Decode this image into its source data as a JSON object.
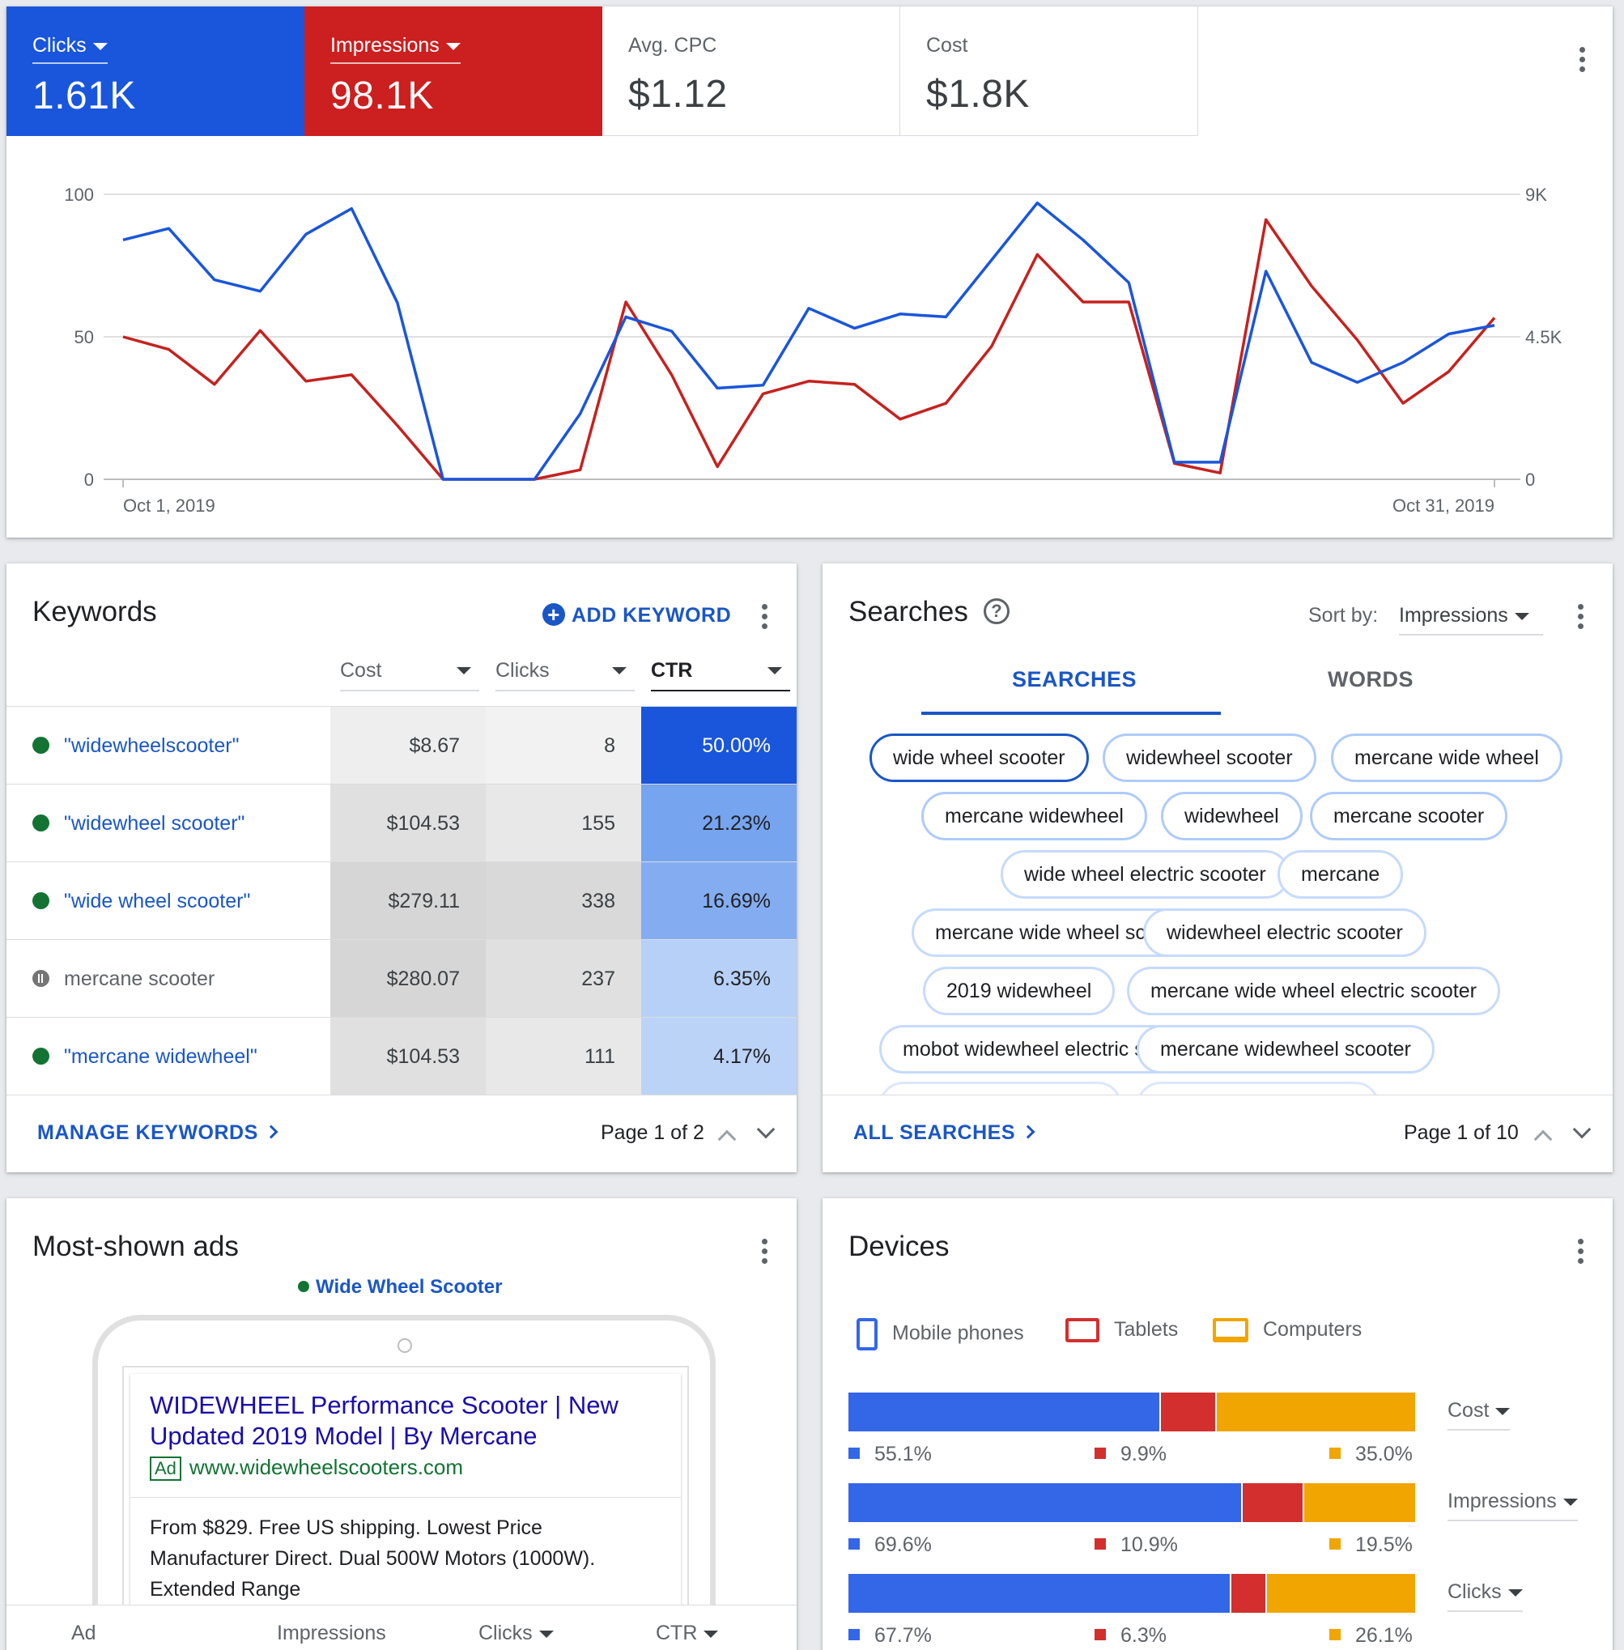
{
  "overview": {
    "metrics": [
      {
        "label": "Clicks",
        "value": "1.61K"
      },
      {
        "label": "Impressions",
        "value": "98.1K"
      },
      {
        "label": "Avg. CPC",
        "value": "$1.12"
      },
      {
        "label": "Cost",
        "value": "$1.8K"
      }
    ]
  },
  "chart_data": {
    "type": "line",
    "x_start_label": "Oct 1, 2019",
    "x_end_label": "Oct 31, 2019",
    "left_axis": {
      "ticks": [
        "100",
        "50",
        "0"
      ],
      "ylim": [
        0,
        100
      ]
    },
    "right_axis": {
      "ticks": [
        "9K",
        "4.5K",
        "0"
      ],
      "ylim": [
        0,
        9000
      ]
    },
    "series": [
      {
        "name": "Clicks",
        "color": "#1a56db",
        "axis": "left",
        "values": [
          84,
          88,
          70,
          66,
          86,
          95,
          62,
          0,
          0,
          0,
          23,
          57,
          52,
          32,
          33,
          60,
          53,
          58,
          57,
          77,
          97,
          84,
          69,
          6,
          6,
          73,
          41,
          34,
          41,
          51,
          54
        ]
      },
      {
        "name": "Impressions",
        "color": "#c5221f",
        "axis": "right",
        "values": [
          4500,
          4100,
          3000,
          4700,
          3100,
          3300,
          1700,
          0,
          0,
          0,
          300,
          5600,
          3300,
          400,
          2700,
          3100,
          3000,
          1900,
          2400,
          4200,
          7100,
          5600,
          5600,
          500,
          200,
          8200,
          6100,
          4400,
          2400,
          3400,
          5100
        ]
      }
    ]
  },
  "keywords": {
    "title": "Keywords",
    "add_label": "ADD KEYWORD",
    "headers": {
      "cost": "Cost",
      "clicks": "Clicks",
      "ctr": "CTR"
    },
    "rows": [
      {
        "keyword": "\"widewheelscooter\"",
        "cost": "$8.67",
        "clicks": "8",
        "ctr": "50.00%",
        "status": "enabled"
      },
      {
        "keyword": "\"widewheel scooter\"",
        "cost": "$104.53",
        "clicks": "155",
        "ctr": "21.23%",
        "status": "enabled"
      },
      {
        "keyword": "\"wide wheel scooter\"",
        "cost": "$279.11",
        "clicks": "338",
        "ctr": "16.69%",
        "status": "enabled"
      },
      {
        "keyword": "mercane scooter",
        "cost": "$280.07",
        "clicks": "237",
        "ctr": "6.35%",
        "status": "paused"
      },
      {
        "keyword": "\"mercane widewheel\"",
        "cost": "$104.53",
        "clicks": "111",
        "ctr": "4.17%",
        "status": "enabled"
      }
    ],
    "footer_link": "MANAGE KEYWORDS",
    "page": "Page 1 of 2"
  },
  "searches": {
    "title": "Searches",
    "sort_label": "Sort by:",
    "sort_value": "Impressions",
    "tabs": [
      "SEARCHES",
      "WORDS"
    ],
    "chips": [
      "wide wheel scooter",
      "widewheel scooter",
      "mercane wide wheel",
      "mercane widewheel",
      "widewheel",
      "mercane scooter",
      "wide wheel electric scooter",
      "mercane",
      "mercane wide wheel scooter",
      "widewheel electric scooter",
      "2019 widewheel",
      "mercane wide wheel electric scooter",
      "mobot widewheel electric scooter",
      "mercane widewheel scooter"
    ],
    "footer_link": "ALL SEARCHES",
    "page": "Page 1 of 10"
  },
  "ads": {
    "title": "Most-shown ads",
    "ad_name": "Wide Wheel Scooter",
    "headline": "WIDEWHEEL Performance Scooter | New Updated 2019 Model | By Mercane",
    "badge": "Ad",
    "url": "www.widewheelscooters.com",
    "description_lines": [
      "From $829. Free US shipping. Lowest Price",
      "Manufacturer Direct. Dual 500W Motors (1000W).",
      "Extended Range"
    ],
    "footer_cols": [
      "Ad",
      "Impressions",
      "Clicks",
      "CTR"
    ]
  },
  "devices": {
    "title": "Devices",
    "legend": [
      "Mobile phones",
      "Tablets",
      "Computers"
    ],
    "colors": {
      "mobile": "#3367e8",
      "tablet": "#d32f2f",
      "computer": "#f0a500"
    },
    "rows": [
      {
        "metric": "Cost",
        "mobile": 55.1,
        "tablet": 9.9,
        "computer": 35.0,
        "labels": [
          "55.1%",
          "9.9%",
          "35.0%"
        ]
      },
      {
        "metric": "Impressions",
        "mobile": 69.6,
        "tablet": 10.9,
        "computer": 19.5,
        "labels": [
          "69.6%",
          "10.9%",
          "19.5%"
        ]
      },
      {
        "metric": "Clicks",
        "mobile": 67.7,
        "tablet": 6.3,
        "computer": 26.1,
        "labels": [
          "67.7%",
          "6.3%",
          "26.1%"
        ]
      }
    ]
  }
}
